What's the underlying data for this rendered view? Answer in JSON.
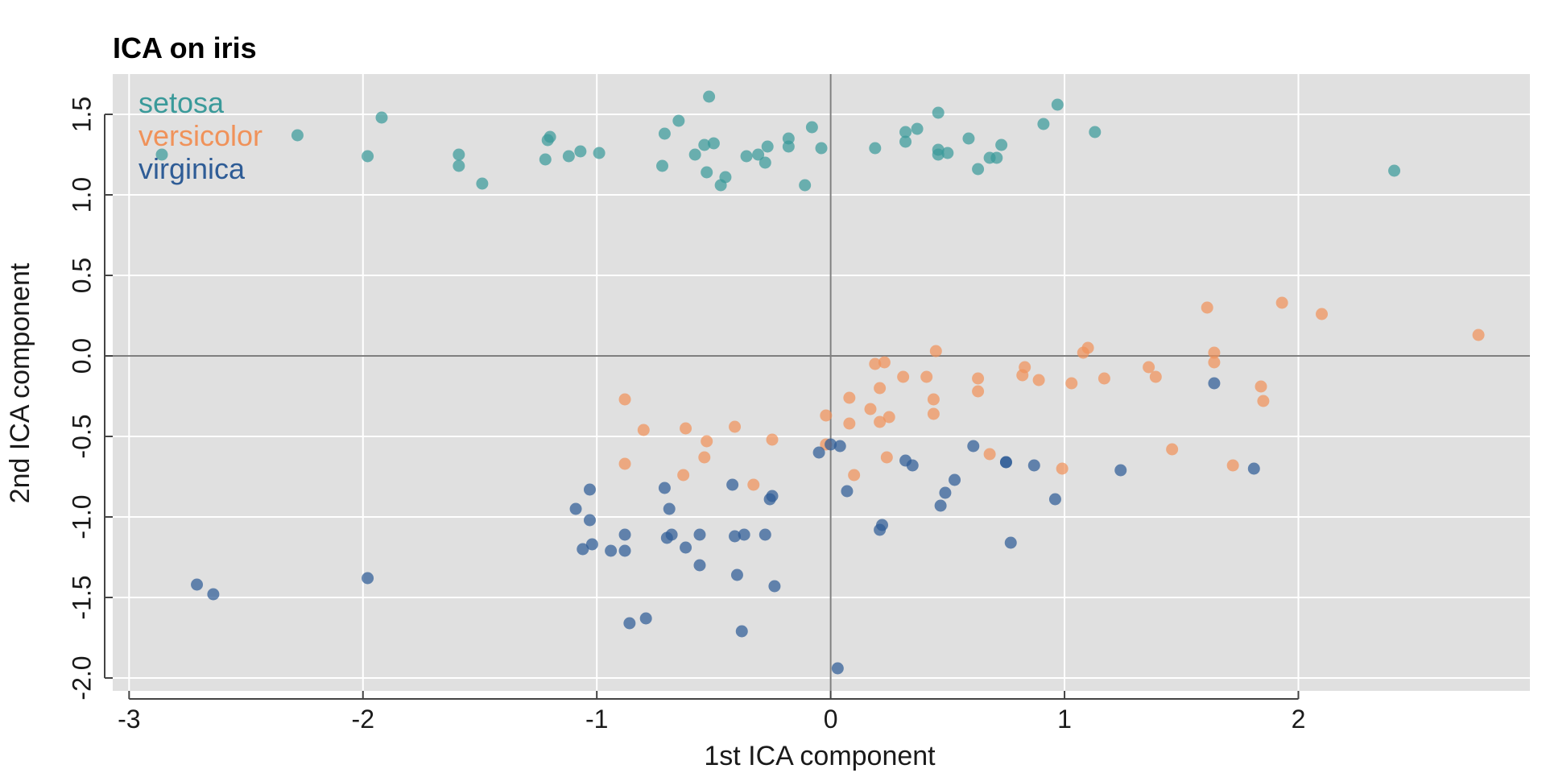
{
  "chart_data": {
    "type": "scatter",
    "title": "ICA on iris",
    "xlabel": "1st ICA component",
    "ylabel": "2nd ICA component",
    "xlim": [
      -3.07,
      2.99
    ],
    "ylim": [
      -2.08,
      1.75
    ],
    "x_ticks": [
      -3,
      -2,
      -1,
      0,
      1,
      2
    ],
    "x_tick_labels": [
      "-3",
      "-2",
      "-1",
      "0",
      "1",
      "2"
    ],
    "y_ticks": [
      -2.0,
      -1.5,
      -1.0,
      -0.5,
      0.0,
      0.5,
      1.0,
      1.5
    ],
    "y_tick_labels": [
      "-2.0",
      "-1.5",
      "-1.0",
      "-0.5",
      "0.0",
      "0.5",
      "1.0",
      "1.5"
    ],
    "grid": true,
    "reference_lines": {
      "x": 0,
      "y": 0
    },
    "legend_position": "top-left",
    "colors": {
      "panel": "#e0e0e0",
      "grid": "#ffffff",
      "reference_line": "#7f7f7f"
    },
    "series": [
      {
        "name": "setosa",
        "color": "#3a9a9a",
        "points": [
          [
            -2.86,
            1.25
          ],
          [
            -2.28,
            1.37
          ],
          [
            -1.98,
            1.24
          ],
          [
            -1.92,
            1.48
          ],
          [
            -1.59,
            1.25
          ],
          [
            -1.59,
            1.18
          ],
          [
            -1.49,
            1.07
          ],
          [
            -1.22,
            1.22
          ],
          [
            -1.21,
            1.34
          ],
          [
            -1.2,
            1.36
          ],
          [
            -1.12,
            1.24
          ],
          [
            -1.07,
            1.27
          ],
          [
            -0.99,
            1.26
          ],
          [
            -0.72,
            1.18
          ],
          [
            -0.71,
            1.38
          ],
          [
            -0.65,
            1.46
          ],
          [
            -0.58,
            1.25
          ],
          [
            -0.54,
            1.31
          ],
          [
            -0.52,
            1.61
          ],
          [
            -0.53,
            1.14
          ],
          [
            -0.5,
            1.32
          ],
          [
            -0.47,
            1.06
          ],
          [
            -0.45,
            1.11
          ],
          [
            -0.36,
            1.24
          ],
          [
            -0.31,
            1.25
          ],
          [
            -0.28,
            1.2
          ],
          [
            -0.27,
            1.3
          ],
          [
            -0.18,
            1.35
          ],
          [
            -0.18,
            1.3
          ],
          [
            -0.11,
            1.06
          ],
          [
            -0.08,
            1.42
          ],
          [
            -0.04,
            1.29
          ],
          [
            0.19,
            1.29
          ],
          [
            0.32,
            1.39
          ],
          [
            0.32,
            1.33
          ],
          [
            0.37,
            1.41
          ],
          [
            0.46,
            1.25
          ],
          [
            0.46,
            1.28
          ],
          [
            0.46,
            1.51
          ],
          [
            0.5,
            1.26
          ],
          [
            0.59,
            1.35
          ],
          [
            0.63,
            1.16
          ],
          [
            0.68,
            1.23
          ],
          [
            0.71,
            1.23
          ],
          [
            0.73,
            1.31
          ],
          [
            0.91,
            1.44
          ],
          [
            0.97,
            1.56
          ],
          [
            1.13,
            1.39
          ],
          [
            2.41,
            1.15
          ]
        ]
      },
      {
        "name": "versicolor",
        "color": "#f0925a",
        "points": [
          [
            -0.88,
            -0.27
          ],
          [
            -0.88,
            -0.67
          ],
          [
            -0.8,
            -0.46
          ],
          [
            -0.62,
            -0.45
          ],
          [
            -0.63,
            -0.74
          ],
          [
            -0.53,
            -0.53
          ],
          [
            -0.54,
            -0.63
          ],
          [
            -0.41,
            -0.44
          ],
          [
            -0.33,
            -0.8
          ],
          [
            -0.25,
            -0.52
          ],
          [
            -0.02,
            -0.37
          ],
          [
            -0.02,
            -0.55
          ],
          [
            0.08,
            -0.26
          ],
          [
            0.08,
            -0.42
          ],
          [
            0.1,
            -0.74
          ],
          [
            0.17,
            -0.33
          ],
          [
            0.19,
            -0.05
          ],
          [
            0.21,
            -0.41
          ],
          [
            0.21,
            -0.2
          ],
          [
            0.23,
            -0.04
          ],
          [
            0.24,
            -0.63
          ],
          [
            0.25,
            -0.38
          ],
          [
            0.31,
            -0.13
          ],
          [
            0.41,
            -0.13
          ],
          [
            0.44,
            -0.27
          ],
          [
            0.44,
            -0.36
          ],
          [
            0.45,
            0.03
          ],
          [
            0.63,
            -0.14
          ],
          [
            0.63,
            -0.22
          ],
          [
            0.68,
            -0.61
          ],
          [
            0.82,
            -0.12
          ],
          [
            0.83,
            -0.07
          ],
          [
            0.89,
            -0.15
          ],
          [
            0.99,
            -0.7
          ],
          [
            1.03,
            -0.17
          ],
          [
            1.08,
            0.02
          ],
          [
            1.1,
            0.05
          ],
          [
            1.17,
            -0.14
          ],
          [
            1.36,
            -0.07
          ],
          [
            1.39,
            -0.13
          ],
          [
            1.46,
            -0.58
          ],
          [
            1.61,
            0.3
          ],
          [
            1.64,
            -0.04
          ],
          [
            1.64,
            0.02
          ],
          [
            1.72,
            -0.68
          ],
          [
            1.84,
            -0.19
          ],
          [
            1.85,
            -0.28
          ],
          [
            1.93,
            0.33
          ],
          [
            2.1,
            0.26
          ],
          [
            2.77,
            0.13
          ]
        ]
      },
      {
        "name": "virginica",
        "color": "#2e5c96",
        "points": [
          [
            -2.71,
            -1.42
          ],
          [
            -2.64,
            -1.48
          ],
          [
            -1.98,
            -1.38
          ],
          [
            -1.09,
            -0.95
          ],
          [
            -1.06,
            -1.2
          ],
          [
            -1.03,
            -0.83
          ],
          [
            -1.03,
            -1.02
          ],
          [
            -1.02,
            -1.17
          ],
          [
            -0.94,
            -1.21
          ],
          [
            -0.88,
            -1.11
          ],
          [
            -0.88,
            -1.21
          ],
          [
            -0.86,
            -1.66
          ],
          [
            -0.79,
            -1.63
          ],
          [
            -0.71,
            -0.82
          ],
          [
            -0.7,
            -1.13
          ],
          [
            -0.69,
            -0.95
          ],
          [
            -0.68,
            -1.11
          ],
          [
            -0.62,
            -1.19
          ],
          [
            -0.56,
            -1.11
          ],
          [
            -0.56,
            -1.3
          ],
          [
            -0.42,
            -0.8
          ],
          [
            -0.41,
            -1.12
          ],
          [
            -0.4,
            -1.36
          ],
          [
            -0.38,
            -1.71
          ],
          [
            -0.37,
            -1.11
          ],
          [
            -0.28,
            -1.11
          ],
          [
            -0.26,
            -0.89
          ],
          [
            -0.25,
            -0.87
          ],
          [
            -0.24,
            -1.43
          ],
          [
            -0.05,
            -0.6
          ],
          [
            0.0,
            -0.55
          ],
          [
            0.03,
            -1.94
          ],
          [
            0.04,
            -0.56
          ],
          [
            0.07,
            -0.84
          ],
          [
            0.21,
            -1.08
          ],
          [
            0.22,
            -1.05
          ],
          [
            0.32,
            -0.65
          ],
          [
            0.35,
            -0.68
          ],
          [
            0.47,
            -0.93
          ],
          [
            0.49,
            -0.85
          ],
          [
            0.53,
            -0.77
          ],
          [
            0.61,
            -0.56
          ],
          [
            0.75,
            -0.66
          ],
          [
            0.75,
            -0.66
          ],
          [
            0.77,
            -1.16
          ],
          [
            0.87,
            -0.68
          ],
          [
            0.96,
            -0.89
          ],
          [
            1.24,
            -0.71
          ],
          [
            1.64,
            -0.17
          ],
          [
            1.81,
            -0.7
          ]
        ]
      }
    ]
  }
}
